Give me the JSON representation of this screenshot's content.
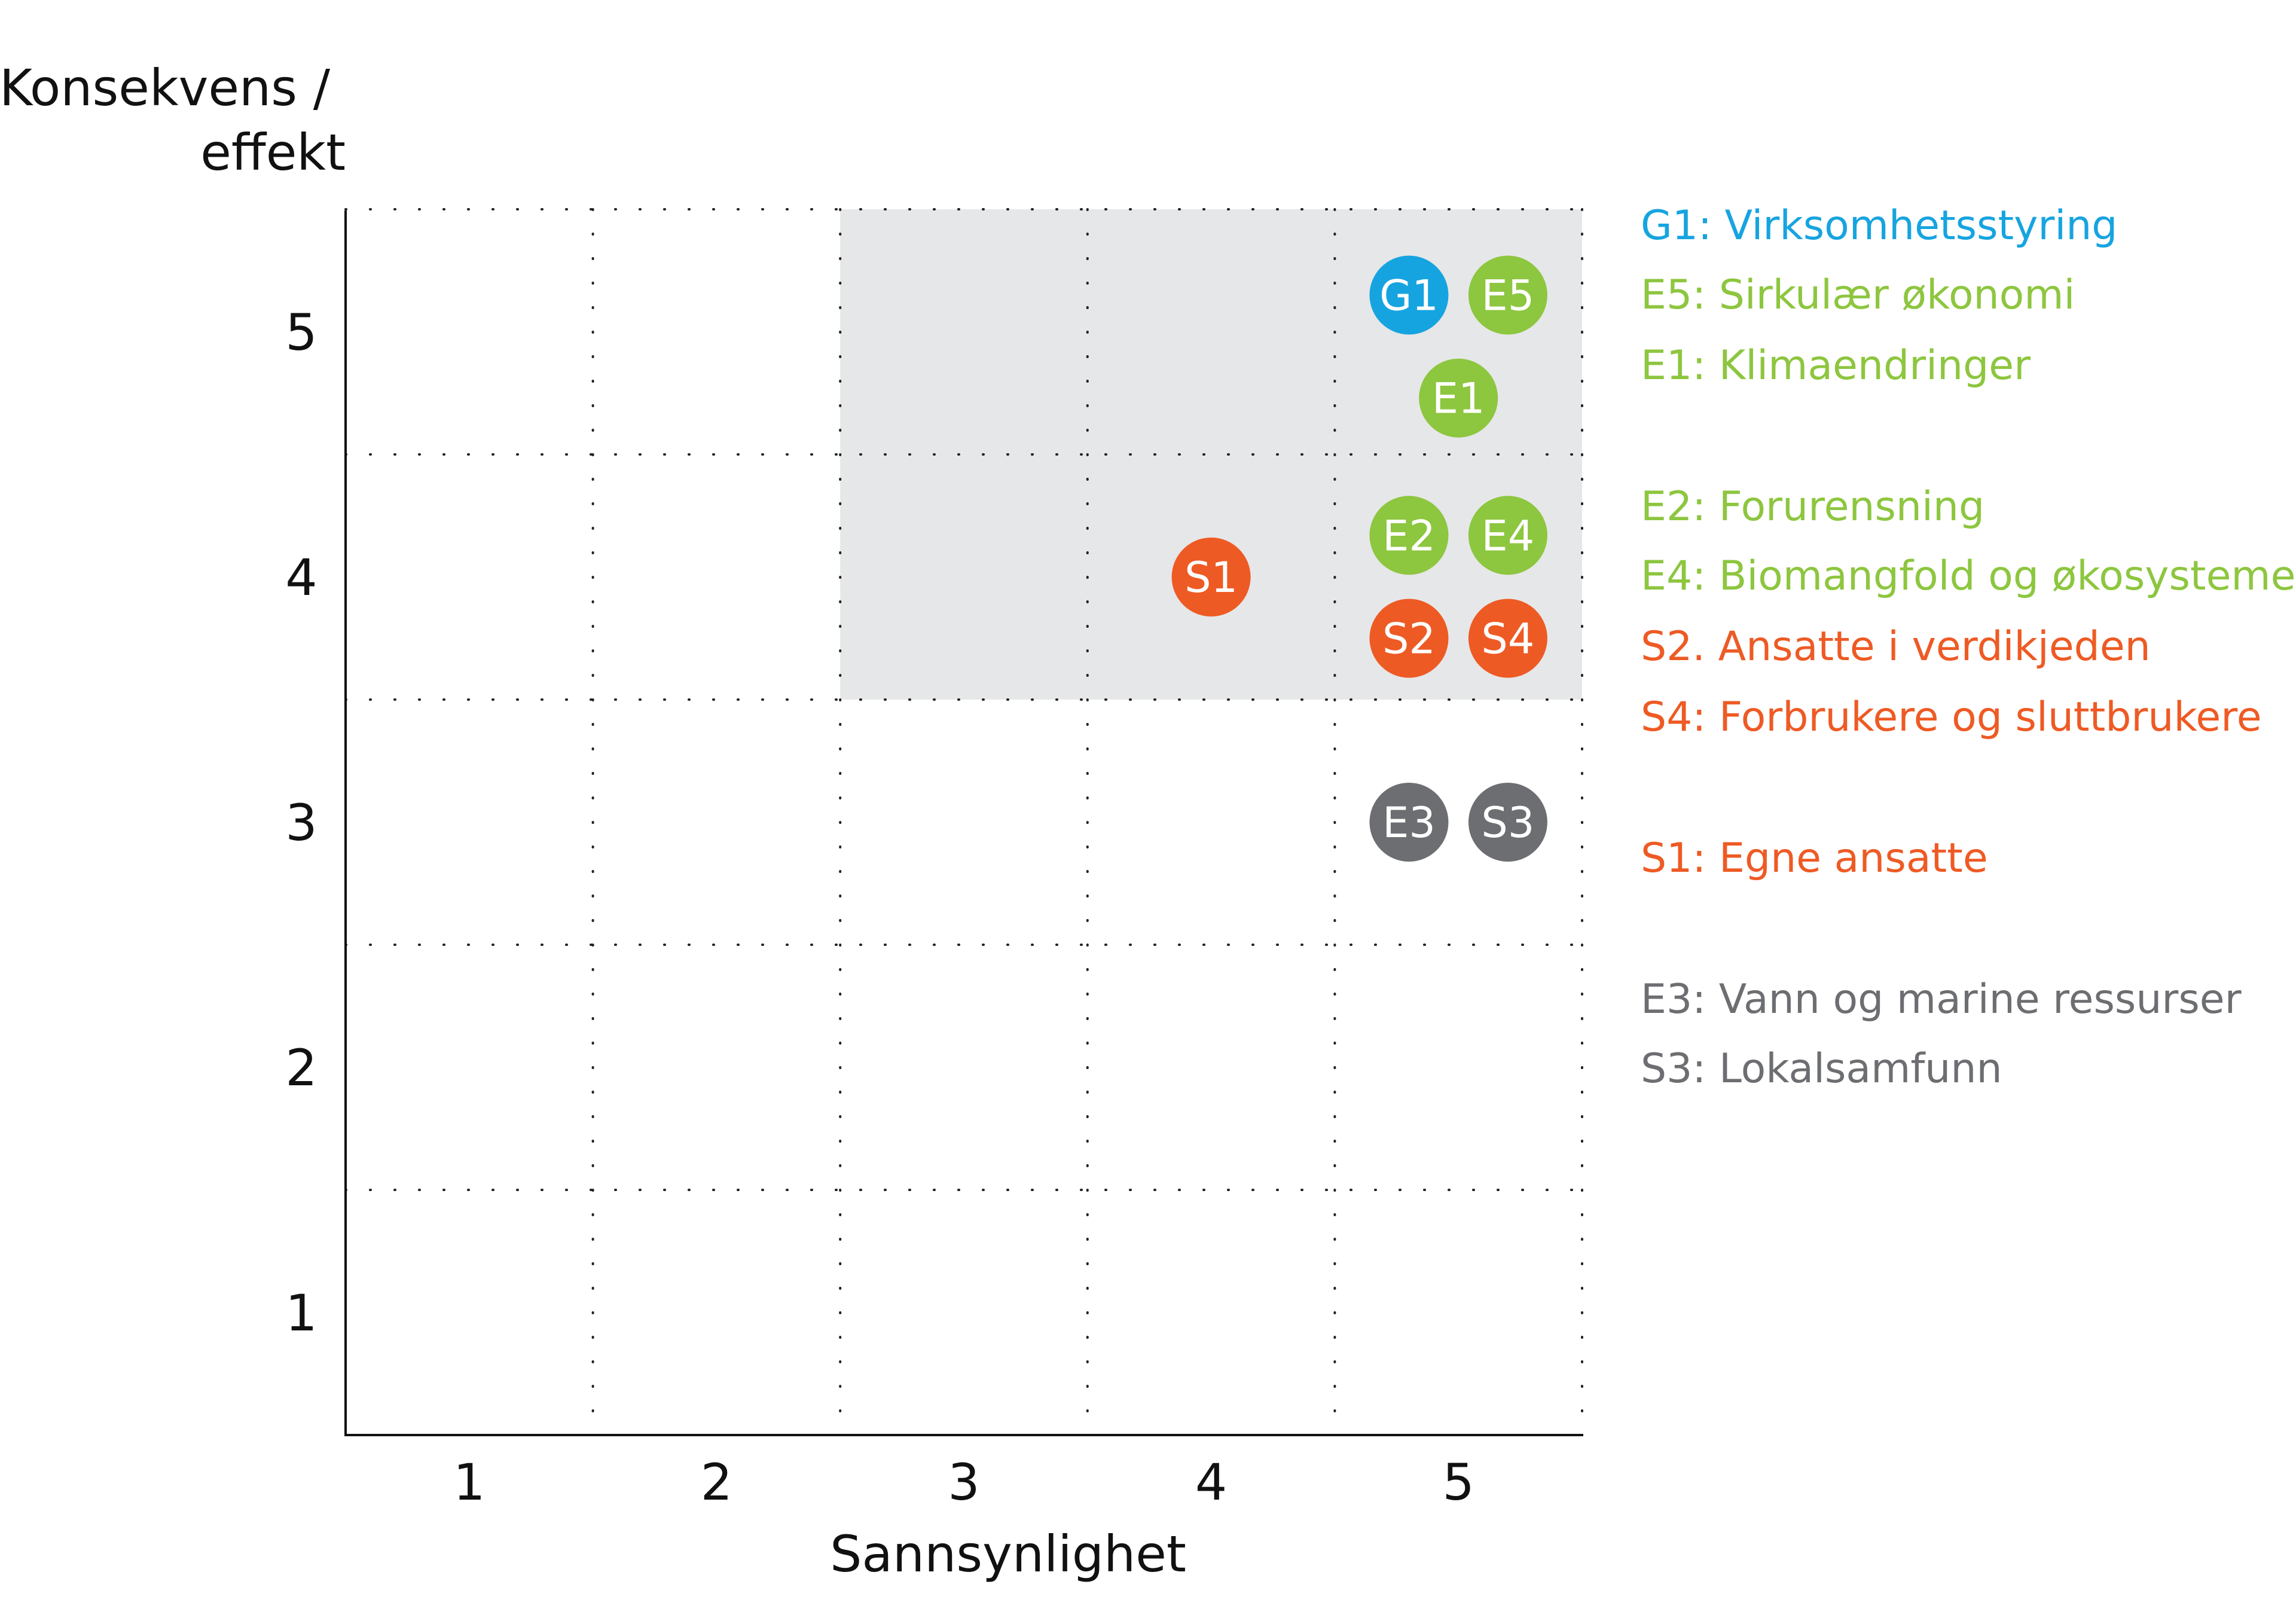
{
  "chart_data": {
    "type": "scatter",
    "xlabel": "Sannsynlighet",
    "ylabel_line1": "Konsekvens /",
    "ylabel_line2": "effekt",
    "xlim": [
      0.5,
      5.5
    ],
    "ylim": [
      0.5,
      5.5
    ],
    "x_ticks": [
      "1",
      "2",
      "3",
      "4",
      "5"
    ],
    "y_ticks": [
      "1",
      "2",
      "3",
      "4",
      "5"
    ],
    "grid": "dotted",
    "highlight_region": {
      "x": [
        2.5,
        5.5
      ],
      "y": [
        3.5,
        5.5
      ],
      "color": "#e6e7e8"
    },
    "colors": {
      "blue": "#16a4e0",
      "green": "#8dc63f",
      "orange": "#ee5a24",
      "gray": "#6d6e71"
    },
    "points": [
      {
        "label": "G1",
        "x": 4.8,
        "y": 5.15,
        "color": "#16a4e0"
      },
      {
        "label": "E5",
        "x": 5.2,
        "y": 5.15,
        "color": "#8dc63f"
      },
      {
        "label": "E1",
        "x": 5.0,
        "y": 4.73,
        "color": "#8dc63f"
      },
      {
        "label": "E2",
        "x": 4.8,
        "y": 4.17,
        "color": "#8dc63f"
      },
      {
        "label": "E4",
        "x": 5.2,
        "y": 4.17,
        "color": "#8dc63f"
      },
      {
        "label": "S1",
        "x": 4.0,
        "y": 4.0,
        "color": "#ee5a24"
      },
      {
        "label": "S2",
        "x": 4.8,
        "y": 3.75,
        "color": "#ee5a24"
      },
      {
        "label": "S4",
        "x": 5.2,
        "y": 3.75,
        "color": "#ee5a24"
      },
      {
        "label": "E3",
        "x": 4.8,
        "y": 3.0,
        "color": "#6d6e71"
      },
      {
        "label": "S3",
        "x": 5.2,
        "y": 3.0,
        "color": "#6d6e71"
      }
    ],
    "legend": [
      {
        "text": "G1: Virksomhetsstyring",
        "color": "#16a4e0"
      },
      {
        "text": "E5: Sirkulær økonomi",
        "color": "#8dc63f"
      },
      {
        "text": "E1: Klimaendringer",
        "color": "#8dc63f"
      },
      {
        "text": "E2: Forurensning",
        "color": "#8dc63f"
      },
      {
        "text": "E4: Biomangfold og økosystemer",
        "color": "#8dc63f"
      },
      {
        "text": "S2. Ansatte i verdikjeden",
        "color": "#ee5a24"
      },
      {
        "text": "S4: Forbrukere og sluttbrukere",
        "color": "#ee5a24"
      },
      {
        "text": "S1: Egne ansatte",
        "color": "#ee5a24"
      },
      {
        "text": "E3: Vann og marine ressurser",
        "color": "#6d6e71"
      },
      {
        "text": "S3: Lokalsamfunn",
        "color": "#6d6e71"
      }
    ]
  }
}
